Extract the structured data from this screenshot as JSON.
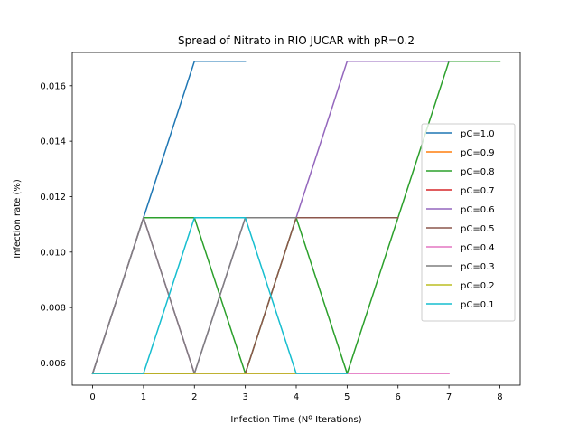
{
  "chart_data": {
    "type": "line",
    "title": "Spread of Nitrato in RIO JUCAR with pR=0.2",
    "xlabel": "Infection Time (Nº Iterations)",
    "ylabel": "Infection rate (%)",
    "xlim": [
      -0.4,
      8.4
    ],
    "ylim": [
      0.0052,
      0.0172
    ],
    "xticks": [
      0,
      1,
      2,
      3,
      4,
      5,
      6,
      7,
      8
    ],
    "xtick_labels": [
      "0",
      "1",
      "2",
      "3",
      "4",
      "5",
      "6",
      "7",
      "8"
    ],
    "yticks": [
      0.006,
      0.008,
      0.01,
      0.012,
      0.014,
      0.016
    ],
    "ytick_labels": [
      "0.006",
      "0.008",
      "0.010",
      "0.012",
      "0.014",
      "0.016"
    ],
    "grid": false,
    "legend_position": "center-right",
    "series": [
      {
        "name": "pC=1.0",
        "color": "#1f77b4",
        "x": [
          0,
          1,
          2,
          3
        ],
        "y": [
          0.00562,
          0.01124,
          0.01688,
          0.01688
        ]
      },
      {
        "name": "pC=0.9",
        "color": "#ff7f0e",
        "x": [
          0,
          1,
          2,
          3,
          4
        ],
        "y": [
          0.00562,
          0.00562,
          0.00562,
          0.00562,
          0.00562
        ]
      },
      {
        "name": "pC=0.8",
        "color": "#2ca02c",
        "x": [
          0,
          1,
          2,
          3,
          4,
          5,
          6,
          7,
          8
        ],
        "y": [
          0.00562,
          0.01124,
          0.01124,
          0.00562,
          0.01124,
          0.00562,
          0.01124,
          0.01688,
          0.01688
        ]
      },
      {
        "name": "pC=0.7",
        "color": "#d62728",
        "x": [
          0,
          1,
          2,
          3,
          4
        ],
        "y": [
          0.00562,
          0.00562,
          0.00562,
          0.00562,
          0.00562
        ]
      },
      {
        "name": "pC=0.6",
        "color": "#9467bd",
        "x": [
          0,
          1,
          2,
          3,
          4,
          5,
          6,
          7
        ],
        "y": [
          0.00562,
          0.01124,
          0.00562,
          0.01124,
          0.01124,
          0.01688,
          0.01688,
          0.01688
        ]
      },
      {
        "name": "pC=0.5",
        "color": "#8c564b",
        "x": [
          0,
          1,
          2,
          3,
          4,
          5,
          6
        ],
        "y": [
          0.00562,
          0.00562,
          0.00562,
          0.00562,
          0.01124,
          0.01124,
          0.01124
        ]
      },
      {
        "name": "pC=0.4",
        "color": "#e377c2",
        "x": [
          0,
          1,
          2,
          3,
          4,
          5,
          6,
          7
        ],
        "y": [
          0.00562,
          0.01124,
          0.00562,
          0.00562,
          0.00562,
          0.00562,
          0.00562,
          0.00562
        ]
      },
      {
        "name": "pC=0.3",
        "color": "#7f7f7f",
        "x": [
          0,
          1,
          2,
          3,
          4
        ],
        "y": [
          0.00562,
          0.01124,
          0.00562,
          0.01124,
          0.01124
        ]
      },
      {
        "name": "pC=0.2",
        "color": "#bcbd22",
        "x": [
          0,
          1,
          2,
          3,
          4
        ],
        "y": [
          0.00562,
          0.00562,
          0.00562,
          0.00562,
          0.00562
        ]
      },
      {
        "name": "pC=0.1",
        "color": "#17becf",
        "x": [
          0,
          1,
          2,
          3,
          4,
          5
        ],
        "y": [
          0.00562,
          0.00562,
          0.01124,
          0.01124,
          0.00562,
          0.00562
        ]
      }
    ]
  }
}
